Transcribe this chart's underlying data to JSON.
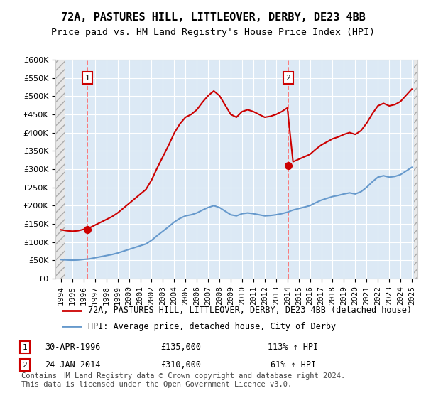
{
  "title": "72A, PASTURES HILL, LITTLEOVER, DERBY, DE23 4BB",
  "subtitle": "Price paid vs. HM Land Registry's House Price Index (HPI)",
  "sale1_date": "30-APR-1996",
  "sale1_price": 135000,
  "sale1_label": "113% ↑ HPI",
  "sale2_date": "24-JAN-2014",
  "sale2_price": 310000,
  "sale2_label": "61% ↑ HPI",
  "legend_line1": "72A, PASTURES HILL, LITTLEOVER, DERBY, DE23 4BB (detached house)",
  "legend_line2": "HPI: Average price, detached house, City of Derby",
  "footnote": "Contains HM Land Registry data © Crown copyright and database right 2024.\nThis data is licensed under the Open Government Licence v3.0.",
  "ylim": [
    0,
    600000
  ],
  "yticks": [
    0,
    50000,
    100000,
    150000,
    200000,
    250000,
    300000,
    350000,
    400000,
    450000,
    500000,
    550000,
    600000
  ],
  "background_color": "#dce9f5",
  "hatch_color": "#c0c0c0",
  "red_line_color": "#cc0000",
  "blue_line_color": "#6699cc",
  "vline_color": "#ff6666",
  "dot_color": "#cc0000",
  "title_fontsize": 11,
  "subtitle_fontsize": 9.5,
  "tick_fontsize": 8,
  "legend_fontsize": 8.5,
  "footnote_fontsize": 7.5
}
